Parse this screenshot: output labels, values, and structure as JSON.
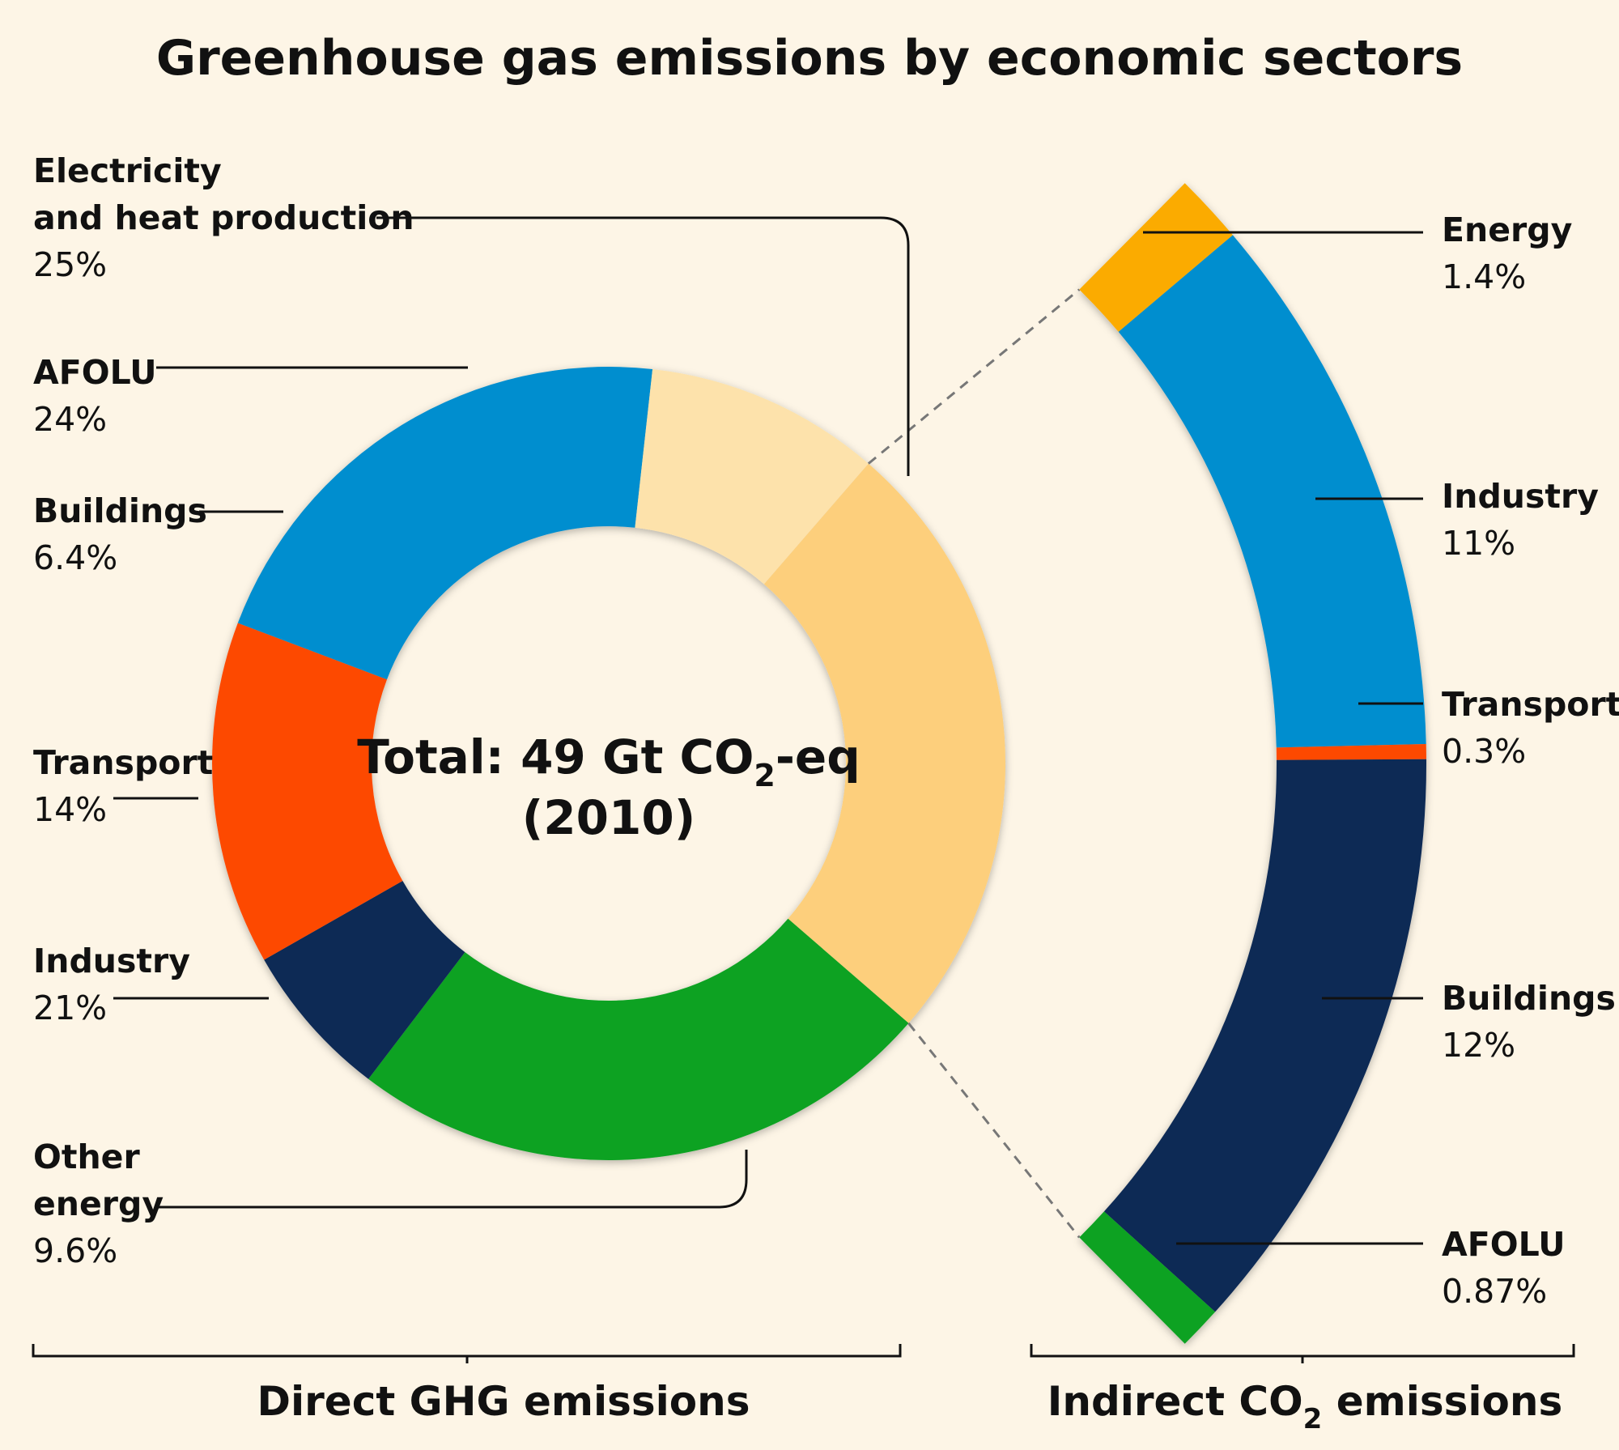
{
  "chart_data": {
    "type": "pie",
    "title": "Greenhouse gas emissions by economic sectors",
    "center_label": {
      "line1": "Total: 49 Gt CO",
      "sub": "2",
      "line1_end": "-eq",
      "line2": "(2010)"
    },
    "direct": {
      "group_label": "Direct GHG emissions",
      "slices": [
        {
          "label_lines": [
            "Electricity",
            "and heat production"
          ],
          "display": "25%",
          "value": 25,
          "color": "#fdcf7c"
        },
        {
          "label_lines": [
            "AFOLU"
          ],
          "display": "24%",
          "value": 24,
          "color": "#08a221"
        },
        {
          "label_lines": [
            "Buildings"
          ],
          "display": "6.4%",
          "value": 6.4,
          "color": "#0f2a55"
        },
        {
          "label_lines": [
            "Transport"
          ],
          "display": "14%",
          "value": 14,
          "color": "#fd4a00"
        },
        {
          "label_lines": [
            "Industry"
          ],
          "display": "21%",
          "value": 21,
          "color": "#028ecf"
        },
        {
          "label_lines": [
            "Other",
            "energy"
          ],
          "display": "9.6%",
          "value": 9.6,
          "color": "#fde2ab"
        }
      ]
    },
    "indirect": {
      "group_label": {
        "main": "Indirect CO",
        "sub": "2",
        "end": " emissions"
      },
      "slices": [
        {
          "label": "Energy",
          "display": "1.4%",
          "value": 1.4,
          "color": "#fbab00"
        },
        {
          "label": "Industry",
          "display": "11%",
          "value": 11,
          "color": "#028ecf"
        },
        {
          "label": "Transport",
          "display": "0.3%",
          "value": 0.3,
          "color": "#fd4a00"
        },
        {
          "label": "Buildings",
          "display": "12%",
          "value": 12,
          "color": "#0f2a55"
        },
        {
          "label": "AFOLU",
          "display": "0.87%",
          "value": 0.87,
          "color": "#08a221"
        }
      ]
    }
  }
}
